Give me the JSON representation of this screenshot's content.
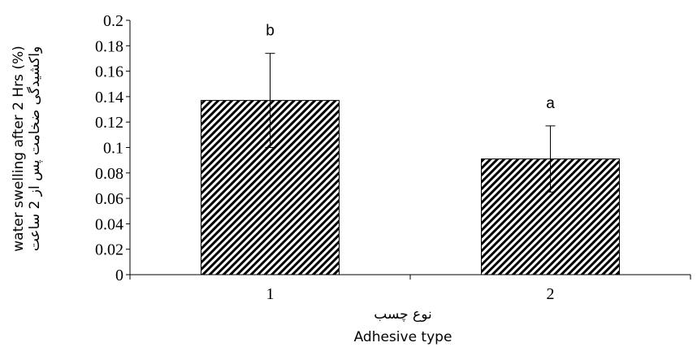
{
  "chart_data": {
    "type": "bar",
    "categories": [
      "1",
      "2"
    ],
    "values": [
      0.137,
      0.091
    ],
    "errors": [
      0.037,
      0.026
    ],
    "annotations": [
      "b",
      "a"
    ],
    "ylim": [
      0,
      0.2
    ],
    "yticks": [
      "0",
      "0.02",
      "0.04",
      "0.06",
      "0.08",
      "0.1",
      "0.12",
      "0.14",
      "0.16",
      "0.18",
      "0.2"
    ],
    "xlabel": "Adhesive type",
    "xlabel_fa": "نوع چسب",
    "ylabel": "water swelling after 2 Hrs (%)",
    "ylabel_fa": "واکشیدگی ضخامت پس از 2 ساعت",
    "bar_pattern": "diagonal-hatch",
    "grid": false,
    "legend": "none"
  }
}
